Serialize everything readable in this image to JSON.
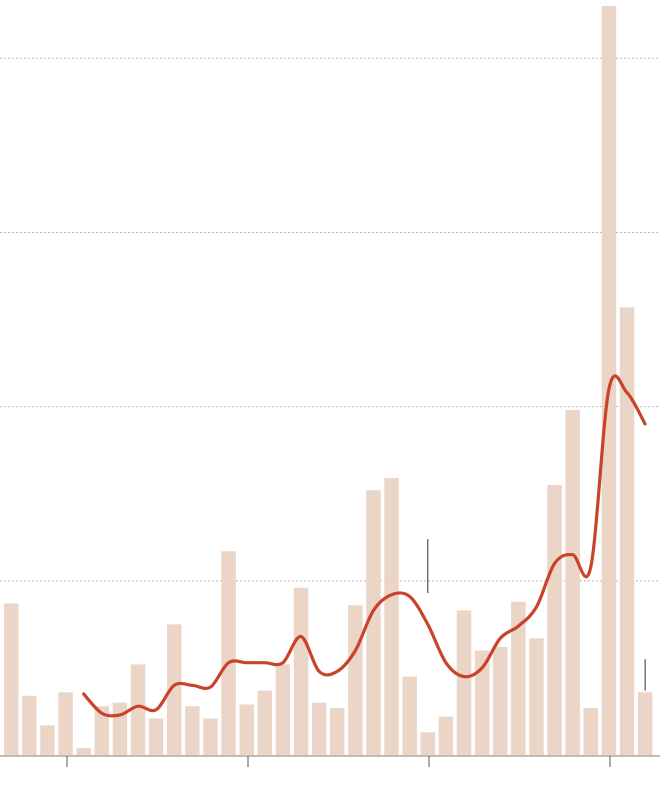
{
  "chart_data": {
    "type": "bar",
    "title": "",
    "xlabel": "",
    "ylabel": "",
    "ylim": [
      0,
      43
    ],
    "gridlines": [
      10,
      20,
      30,
      40
    ],
    "x_ticks": 4,
    "bar_color": "#ebd5c7",
    "line_color": "#c9432b",
    "series": [
      {
        "type": "bar",
        "values": [
          8.7,
          3.4,
          1.7,
          3.6,
          0.4,
          2.8,
          3.0,
          5.2,
          2.1,
          7.5,
          2.8,
          2.1,
          11.7,
          2.9,
          3.7,
          5.2,
          9.6,
          3.0,
          2.7,
          8.6,
          15.2,
          15.9,
          4.5,
          1.3,
          2.2,
          8.3,
          6.0,
          6.2,
          8.8,
          6.7,
          15.5,
          19.8,
          2.7,
          43.0,
          25.7,
          3.6
        ]
      },
      {
        "type": "line",
        "values": [
          null,
          null,
          null,
          null,
          3.5,
          2.4,
          2.3,
          2.8,
          2.6,
          4.0,
          4.0,
          3.9,
          5.3,
          5.3,
          5.3,
          5.3,
          6.8,
          4.8,
          4.8,
          6.0,
          8.3,
          9.2,
          9.1,
          7.5,
          5.3,
          4.5,
          5.0,
          6.7,
          7.4,
          8.5,
          11.0,
          11.5,
          10.8,
          21.0,
          20.8,
          19.0
        ]
      }
    ],
    "annotations": [
      {
        "category_index": 23,
        "from": 9.3,
        "to": 12.4
      },
      {
        "category_index": 35,
        "from": 3.7,
        "to": 5.5
      }
    ]
  }
}
